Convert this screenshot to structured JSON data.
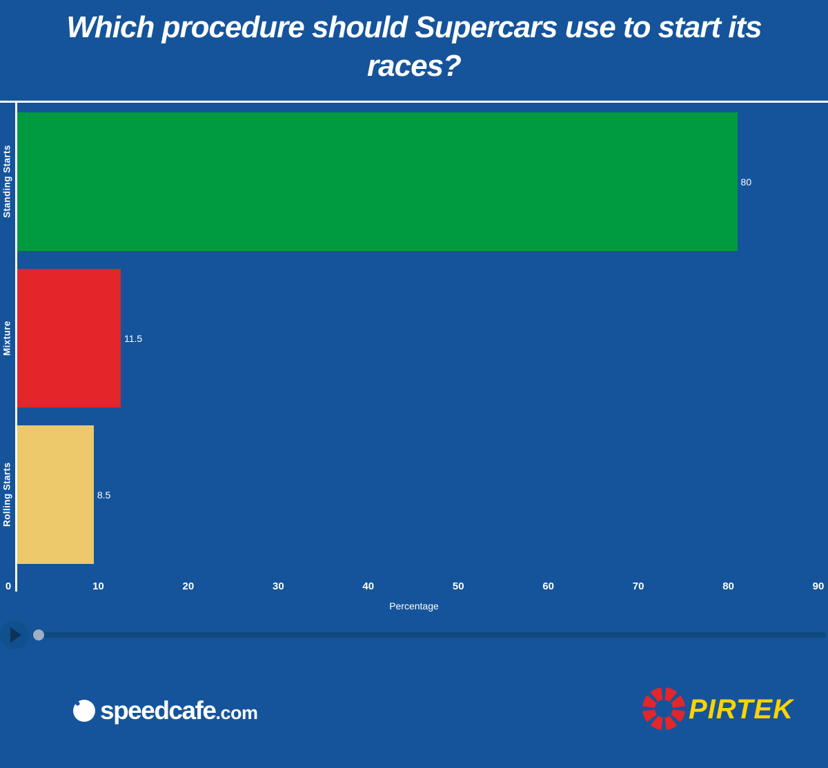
{
  "title": "Which procedure should Supercars use to start its races?",
  "chart_data": {
    "type": "bar",
    "orientation": "horizontal",
    "title": "Which procedure should Supercars use to start its races?",
    "categories": [
      "Standing Starts",
      "Mixture",
      "Rolling Starts"
    ],
    "values": [
      80,
      11.5,
      8.5
    ],
    "value_labels": [
      "80",
      "11.5",
      "8.5"
    ],
    "bar_colors": [
      "#009B41",
      "#E2262A",
      "#EDC96B"
    ],
    "xlabel": "Percentage",
    "ylabel": "",
    "xlim": [
      0,
      90
    ],
    "x_ticks": [
      0,
      10,
      20,
      30,
      40,
      50,
      60,
      70,
      80,
      90
    ],
    "grid": false,
    "legend": "none"
  },
  "colors": {
    "background": "#15549B",
    "axis_line": "#FFFFFF",
    "text": "#FFFFFF",
    "slider_track": "#10497E",
    "slider_handle": "#9FB0C4",
    "play_button_fill": "#11508F",
    "play_triangle": "#0F3356",
    "pirtek_red": "#E2262A",
    "pirtek_yellow": "#FBD304",
    "speedcafe_white": "#FFFFFF"
  },
  "footer": {
    "speedcafe_text": "speedcafe",
    "speedcafe_suffix": ".com",
    "pirtek_text": "PIRTEK"
  }
}
